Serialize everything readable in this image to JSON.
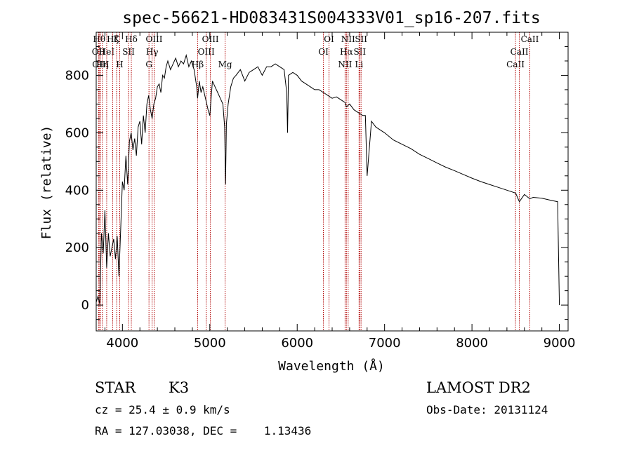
{
  "chart_data": {
    "type": "line",
    "title": "spec-56621-HD083431S004333V01_sp16-207.fits",
    "xlabel": "Wavelength (Å)",
    "ylabel": "Flux (relative)",
    "xlim": [
      3700,
      9100
    ],
    "ylim": [
      -90,
      950
    ],
    "xticks": [
      4000,
      5000,
      6000,
      7000,
      8000,
      9000
    ],
    "yticks": [
      0,
      200,
      400,
      600,
      800
    ],
    "grid": false,
    "series": [
      {
        "x": [
          3700,
          3720,
          3740,
          3760,
          3780,
          3800,
          3820,
          3840,
          3860,
          3880,
          3900,
          3920,
          3940,
          3960,
          3980,
          4000,
          4020,
          4040,
          4060,
          4080,
          4100,
          4120,
          4140,
          4160,
          4180,
          4200,
          4220,
          4240,
          4260,
          4280,
          4300,
          4320,
          4340,
          4360,
          4380,
          4400,
          4420,
          4440,
          4460,
          4480,
          4500,
          4520,
          4550,
          4580,
          4610,
          4640,
          4670,
          4700,
          4730,
          4760,
          4790,
          4820,
          4850,
          4860,
          4880,
          4900,
          4920,
          4950,
          4980,
          5000,
          5030,
          5060,
          5090,
          5120,
          5150,
          5170,
          5180,
          5190,
          5210,
          5240,
          5270,
          5300,
          5350,
          5400,
          5450,
          5500,
          5550,
          5600,
          5650,
          5700,
          5750,
          5800,
          5850,
          5880,
          5890,
          5900,
          5950,
          6000,
          6050,
          6100,
          6150,
          6200,
          6250,
          6300,
          6350,
          6400,
          6450,
          6500,
          6550,
          6563,
          6600,
          6650,
          6700,
          6750,
          6780,
          6800,
          6850,
          6900,
          6950,
          7000,
          7100,
          7200,
          7300,
          7400,
          7500,
          7600,
          7700,
          7800,
          7900,
          8000,
          8100,
          8200,
          8300,
          8400,
          8500,
          8542,
          8600,
          8662,
          8700,
          8800,
          8900,
          8980,
          9000
        ],
        "values": [
          10,
          30,
          5,
          250,
          180,
          330,
          130,
          250,
          170,
          200,
          230,
          160,
          240,
          100,
          260,
          430,
          400,
          520,
          420,
          570,
          600,
          540,
          580,
          520,
          620,
          640,
          560,
          660,
          600,
          700,
          730,
          680,
          650,
          700,
          720,
          760,
          770,
          740,
          800,
          790,
          830,
          850,
          820,
          840,
          860,
          830,
          850,
          840,
          870,
          830,
          850,
          820,
          760,
          720,
          780,
          740,
          760,
          720,
          680,
          660,
          780,
          760,
          740,
          720,
          700,
          620,
          420,
          630,
          700,
          760,
          790,
          800,
          820,
          780,
          810,
          820,
          830,
          800,
          830,
          830,
          840,
          830,
          820,
          740,
          600,
          800,
          810,
          800,
          780,
          770,
          760,
          750,
          750,
          740,
          730,
          720,
          725,
          715,
          705,
          690,
          700,
          680,
          670,
          660,
          660,
          450,
          640,
          620,
          610,
          600,
          575,
          560,
          545,
          525,
          510,
          495,
          480,
          468,
          455,
          442,
          430,
          420,
          410,
          400,
          390,
          360,
          385,
          370,
          375,
          372,
          365,
          360,
          0
        ]
      }
    ],
    "line_markers": [
      {
        "wavelength": 3734,
        "labels": [
          "Hθ"
        ],
        "row": 1
      },
      {
        "wavelength": 3727,
        "labels": [
          "OII"
        ],
        "row": 2
      },
      {
        "wavelength": 3750,
        "labels": [
          "OIII"
        ],
        "row": 3
      },
      {
        "wavelength": 3770,
        "labels": [
          "Hη"
        ],
        "row": 3
      },
      {
        "wavelength": 3820,
        "labels": [
          "HeI"
        ],
        "row": 2
      },
      {
        "wavelength": 3889,
        "labels": [
          "Hζ"
        ],
        "row": 1
      },
      {
        "wavelength": 3934,
        "labels": [
          "K"
        ],
        "row": 1
      },
      {
        "wavelength": 3969,
        "labels": [
          "H"
        ],
        "row": 3
      },
      {
        "wavelength": 4070,
        "labels": [
          "SII"
        ],
        "row": 2
      },
      {
        "wavelength": 4102,
        "labels": [
          "Hδ"
        ],
        "row": 1
      },
      {
        "wavelength": 4304,
        "labels": [
          "G"
        ],
        "row": 3
      },
      {
        "wavelength": 4340,
        "labels": [
          "Hγ"
        ],
        "row": 2
      },
      {
        "wavelength": 4363,
        "labels": [
          "OIII"
        ],
        "row": 1
      },
      {
        "wavelength": 4861,
        "labels": [
          "Hβ"
        ],
        "row": 3
      },
      {
        "wavelength": 4959,
        "labels": [
          "OIII"
        ],
        "row": 2
      },
      {
        "wavelength": 5007,
        "labels": [
          "OIII"
        ],
        "row": 1
      },
      {
        "wavelength": 5175,
        "labels": [
          "Mg"
        ],
        "row": 3
      },
      {
        "wavelength": 6300,
        "labels": [
          "OI"
        ],
        "row": 2
      },
      {
        "wavelength": 6364,
        "labels": [
          "OI"
        ],
        "row": 1
      },
      {
        "wavelength": 6548,
        "labels": [
          "NII"
        ],
        "row": 3
      },
      {
        "wavelength": 6563,
        "labels": [
          "Hα"
        ],
        "row": 2
      },
      {
        "wavelength": 6583,
        "labels": [
          "NII"
        ],
        "row": 1
      },
      {
        "wavelength": 6708,
        "labels": [
          "Li"
        ],
        "row": 3
      },
      {
        "wavelength": 6716,
        "labels": [
          "SII"
        ],
        "row": 2
      },
      {
        "wavelength": 6731,
        "labels": [
          "SII"
        ],
        "row": 1
      },
      {
        "wavelength": 8498,
        "labels": [
          "CaII"
        ],
        "row": 3
      },
      {
        "wavelength": 8542,
        "labels": [
          "CaII"
        ],
        "row": 2
      },
      {
        "wavelength": 8662,
        "labels": [
          "CaII"
        ],
        "row": 1
      }
    ]
  },
  "info": {
    "class_label": "STAR",
    "subclass": "K3",
    "survey": "LAMOST DR2",
    "cz": "cz = 25.4 ± 0.9 km/s",
    "obs_date": "Obs-Date: 20131124",
    "coords": "RA = 127.03038, DEC =    1.13436"
  },
  "colors": {
    "axes": "#000000",
    "spectrum": "#000000",
    "marker_line": "#b00000",
    "background": "#ffffff"
  }
}
